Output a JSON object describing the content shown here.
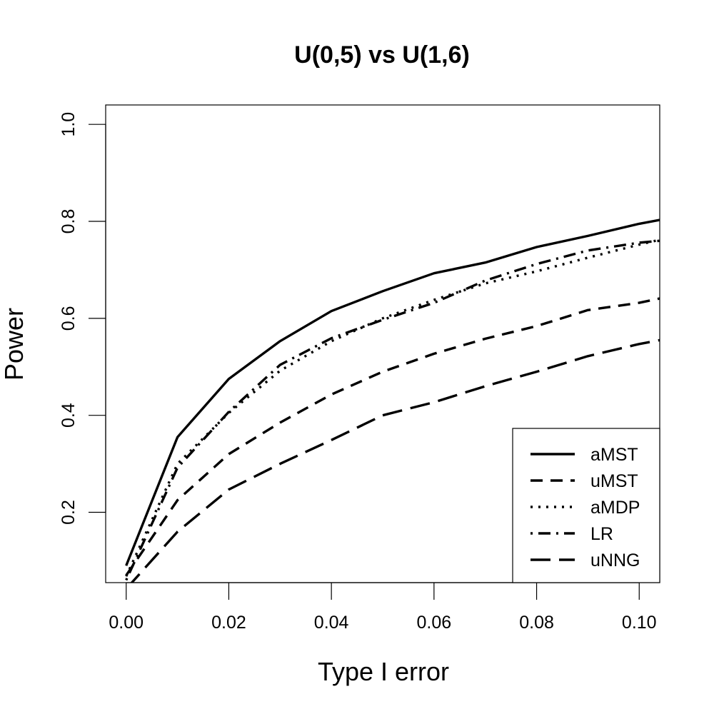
{
  "chart_data": {
    "type": "line",
    "title": "U(0,5) vs U(1,6)",
    "xlabel": "Type I error",
    "ylabel": "Power",
    "xlim": [
      -0.004,
      0.104
    ],
    "ylim": [
      0.055,
      1.04
    ],
    "xticks": [
      {
        "value": 0.0,
        "label": "0.00"
      },
      {
        "value": 0.02,
        "label": "0.02"
      },
      {
        "value": 0.04,
        "label": "0.04"
      },
      {
        "value": 0.06,
        "label": "0.06"
      },
      {
        "value": 0.08,
        "label": "0.08"
      },
      {
        "value": 0.1,
        "label": "0.10"
      }
    ],
    "yticks": [
      {
        "value": 0.2,
        "label": "0.2"
      },
      {
        "value": 0.4,
        "label": "0.4"
      },
      {
        "value": 0.6,
        "label": "0.6"
      },
      {
        "value": 0.8,
        "label": "0.8"
      },
      {
        "value": 1.0,
        "label": "1.0"
      }
    ],
    "grid": false,
    "legend_position": "bottom-right",
    "x": [
      0.0,
      0.01,
      0.02,
      0.03,
      0.04,
      0.05,
      0.06,
      0.07,
      0.08,
      0.09,
      0.1,
      0.104
    ],
    "series": [
      {
        "name": "aMST",
        "dash": "solid",
        "values": [
          0.09,
          0.355,
          0.475,
          0.553,
          0.615,
          0.656,
          0.693,
          0.715,
          0.747,
          0.77,
          0.795,
          0.803
        ]
      },
      {
        "name": "uMST",
        "dash": "dashed",
        "values": [
          0.07,
          0.225,
          0.32,
          0.385,
          0.443,
          0.49,
          0.527,
          0.558,
          0.584,
          0.617,
          0.632,
          0.641
        ]
      },
      {
        "name": "aMDP",
        "dash": "dotted",
        "values": [
          0.068,
          0.3,
          0.405,
          0.492,
          0.553,
          0.6,
          0.638,
          0.672,
          0.697,
          0.725,
          0.752,
          0.762
        ]
      },
      {
        "name": "LR",
        "dash": "dotdash",
        "values": [
          0.06,
          0.292,
          0.407,
          0.504,
          0.559,
          0.597,
          0.632,
          0.678,
          0.712,
          0.74,
          0.756,
          0.76
        ]
      },
      {
        "name": "uNNG",
        "dash": "longdash",
        "values": [
          0.042,
          0.16,
          0.247,
          0.3,
          0.349,
          0.4,
          0.427,
          0.46,
          0.49,
          0.522,
          0.547,
          0.555
        ]
      }
    ]
  }
}
